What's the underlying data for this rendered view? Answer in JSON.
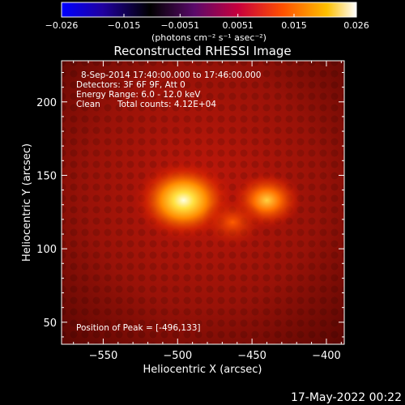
{
  "chart_data": {
    "type": "heatmap",
    "title": "Reconstructed RHESSI Image",
    "xlabel": "Heliocentric X (arcsec)",
    "ylabel": "Heliocentric Y (arcsec)",
    "xlim": [
      -578,
      -388
    ],
    "ylim": [
      35,
      228
    ],
    "x_ticks": [
      -550,
      -500,
      -450,
      -400
    ],
    "x_tick_labels": [
      "−550",
      "−500",
      "−450",
      "−400"
    ],
    "y_ticks": [
      50,
      100,
      150,
      200
    ],
    "y_tick_labels": [
      "50",
      "100",
      "150",
      "200"
    ],
    "colorbar": {
      "range": [
        -0.026,
        0.026
      ],
      "ticks": [
        -0.026,
        -0.015,
        -0.0051,
        0.0051,
        0.015,
        0.026
      ],
      "tick_labels": [
        "−0.026",
        "−0.015",
        "−0.0051",
        "0.0051",
        "0.015",
        "0.026"
      ],
      "unit_label": "(photons cm⁻² s⁻¹ asec⁻²)",
      "colormap": [
        "#0000ff",
        "#2000a0",
        "#000000",
        "#5a0a6a",
        "#c8003c",
        "#ff5000",
        "#ffc000",
        "#ffffff"
      ]
    },
    "annotations": {
      "time_range": "8-Sep-2014 17:40:00.000 to 17:46:00.000",
      "detectors": "Detectors: 3F 6F 9F, Att 0",
      "energy_range": "Energy Range: 6.0 - 12.0 keV",
      "method": "Clean",
      "total_counts": "Total counts: 4.12E+04",
      "peak": "Position of Peak = [-496,133]"
    },
    "sources": [
      {
        "x": -496,
        "y": 133,
        "relative_intensity": 1.0
      },
      {
        "x": -440,
        "y": 133,
        "relative_intensity": 0.7
      },
      {
        "x": -463,
        "y": 118,
        "relative_intensity": 0.45
      }
    ]
  },
  "footer": {
    "date_stamp": "17-May-2022 00:22"
  }
}
